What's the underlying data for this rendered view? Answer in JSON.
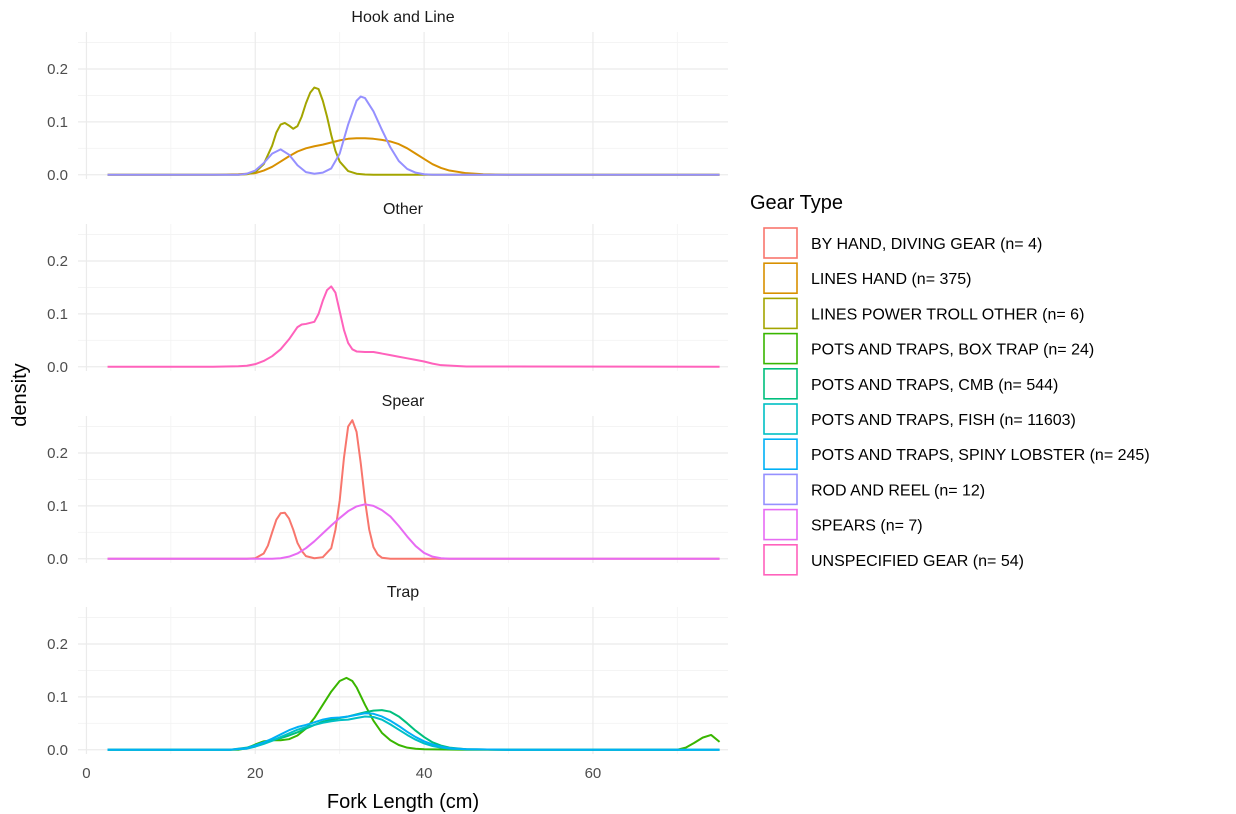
{
  "chart_data": {
    "type": "area",
    "xlabel": "Fork Length (cm)",
    "ylabel": "density",
    "xlim": [
      -1,
      76
    ],
    "ylim": [
      -0.008,
      0.27
    ],
    "x_ticks": [
      0,
      20,
      40,
      60
    ],
    "x_tick_labels": [
      "0",
      "20",
      "40",
      "60"
    ],
    "y_ticks": [
      0.0,
      0.1,
      0.2
    ],
    "y_tick_labels": [
      "0.0",
      "0.1",
      "0.2"
    ],
    "grid": true,
    "legend": {
      "title": "Gear Type",
      "position": "right",
      "entries": [
        {
          "label": "BY HAND, DIVING GEAR (n= 4)",
          "color": "#F8766D"
        },
        {
          "label": "LINES HAND (n= 375)",
          "color": "#D89000"
        },
        {
          "label": "LINES POWER TROLL OTHER (n= 6)",
          "color": "#A3A500"
        },
        {
          "label": "POTS AND TRAPS, BOX TRAP (n= 24)",
          "color": "#39B600"
        },
        {
          "label": "POTS AND TRAPS, CMB (n= 544)",
          "color": "#00BF7D"
        },
        {
          "label": "POTS AND TRAPS, FISH (n= 11603)",
          "color": "#00BFC4"
        },
        {
          "label": "POTS AND TRAPS, SPINY LOBSTER (n= 245)",
          "color": "#00B0F6"
        },
        {
          "label": "ROD AND REEL (n= 12)",
          "color": "#9590FF"
        },
        {
          "label": "SPEARS (n= 7)",
          "color": "#E76BF3"
        },
        {
          "label": "UNSPECIFIED GEAR (n= 54)",
          "color": "#FF62BC"
        }
      ]
    },
    "facets": [
      {
        "title": "Hook and Line",
        "series": [
          {
            "name": "LINES HAND (n= 375)",
            "color": "#D89000",
            "x": [
              2.5,
              15,
              18,
              20,
              21,
              22,
              23,
              24,
              25,
              26,
              27,
              28,
              29,
              30,
              31,
              32,
              33,
              34,
              35,
              36,
              37,
              38,
              39,
              40,
              41,
              42,
              43,
              45,
              47,
              50,
              55,
              75
            ],
            "y": [
              0,
              0,
              0.001,
              0.003,
              0.008,
              0.015,
              0.025,
              0.035,
              0.044,
              0.05,
              0.054,
              0.057,
              0.061,
              0.065,
              0.068,
              0.069,
              0.069,
              0.068,
              0.066,
              0.063,
              0.058,
              0.05,
              0.04,
              0.03,
              0.02,
              0.013,
              0.008,
              0.003,
              0.001,
              0,
              0,
              0
            ]
          },
          {
            "name": "LINES POWER TROLL OTHER (n= 6)",
            "color": "#A3A500",
            "x": [
              2.5,
              18,
              19,
              20,
              21,
              22,
              22.5,
              23,
              23.5,
              24,
              24.5,
              25,
              25.5,
              26,
              26.5,
              27,
              27.5,
              28,
              28.5,
              29,
              29.5,
              30,
              31,
              32,
              33,
              34,
              75
            ],
            "y": [
              0,
              0,
              0.001,
              0.005,
              0.02,
              0.055,
              0.08,
              0.095,
              0.098,
              0.093,
              0.087,
              0.092,
              0.11,
              0.135,
              0.155,
              0.165,
              0.162,
              0.14,
              0.11,
              0.075,
              0.045,
              0.025,
              0.007,
              0.002,
              0.0005,
              0,
              0
            ]
          },
          {
            "name": "ROD AND REEL (n= 12)",
            "color": "#9590FF",
            "x": [
              2.5,
              18,
              19,
              20,
              21,
              22,
              23,
              24,
              25,
              26,
              27,
              28,
              29,
              30,
              31,
              32,
              32.5,
              33,
              34,
              35,
              36,
              37,
              38,
              39,
              40,
              41,
              75
            ],
            "y": [
              0,
              0,
              0.002,
              0.008,
              0.022,
              0.04,
              0.048,
              0.038,
              0.018,
              0.005,
              0.002,
              0.004,
              0.012,
              0.04,
              0.095,
              0.14,
              0.148,
              0.145,
              0.12,
              0.085,
              0.052,
              0.026,
              0.011,
              0.004,
              0.001,
              0,
              0
            ]
          }
        ]
      },
      {
        "title": "Other",
        "series": [
          {
            "name": "UNSPECIFIED GEAR (n= 54)",
            "color": "#FF62BC",
            "x": [
              2.5,
              15,
              18,
              19,
              20,
              21,
              22,
              23,
              24,
              25,
              25.5,
              26,
              27,
              27.5,
              28,
              28.5,
              29,
              29.5,
              30,
              30.5,
              31,
              31.5,
              32,
              33,
              34,
              35,
              36,
              37,
              38,
              39,
              40,
              41,
              42,
              45,
              75
            ],
            "y": [
              0,
              0,
              0.001,
              0.002,
              0.005,
              0.011,
              0.02,
              0.033,
              0.052,
              0.075,
              0.08,
              0.081,
              0.085,
              0.1,
              0.125,
              0.145,
              0.152,
              0.14,
              0.105,
              0.07,
              0.045,
              0.033,
              0.029,
              0.028,
              0.028,
              0.025,
              0.022,
              0.019,
              0.016,
              0.013,
              0.01,
              0.006,
              0.003,
              0.0005,
              0
            ]
          }
        ]
      },
      {
        "title": "Spear",
        "series": [
          {
            "name": "BY HAND, DIVING GEAR (n= 4)",
            "color": "#F8766D",
            "x": [
              2.5,
              19,
              20,
              21,
              21.5,
              22,
              22.5,
              23,
              23.5,
              24,
              24.5,
              25,
              25.5,
              26,
              27,
              28,
              29,
              29.5,
              30,
              30.5,
              31,
              31.5,
              32,
              32.5,
              33,
              33.5,
              34,
              34.5,
              35,
              36,
              75
            ],
            "y": [
              0,
              0,
              0.001,
              0.01,
              0.025,
              0.05,
              0.074,
              0.086,
              0.087,
              0.076,
              0.055,
              0.03,
              0.015,
              0.005,
              0.001,
              0.003,
              0.02,
              0.055,
              0.11,
              0.19,
              0.25,
              0.262,
              0.24,
              0.18,
              0.11,
              0.055,
              0.022,
              0.008,
              0.002,
              0,
              0
            ]
          },
          {
            "name": "SPEARS (n= 7)",
            "color": "#E76BF3",
            "x": [
              2.5,
              22,
              23,
              24,
              25,
              26,
              27,
              28,
              29,
              30,
              31,
              32,
              33,
              34,
              35,
              36,
              37,
              38,
              39,
              40,
              41,
              42,
              43,
              75
            ],
            "y": [
              0,
              0,
              0.001,
              0.004,
              0.01,
              0.02,
              0.033,
              0.048,
              0.063,
              0.077,
              0.09,
              0.099,
              0.103,
              0.1,
              0.092,
              0.08,
              0.062,
              0.042,
              0.024,
              0.011,
              0.004,
              0.001,
              0,
              0
            ]
          }
        ]
      },
      {
        "title": "Trap",
        "series": [
          {
            "name": "POTS AND TRAPS, BOX TRAP (n= 24)",
            "color": "#39B600",
            "x": [
              2.5,
              18,
              19,
              20,
              21,
              22,
              23,
              24,
              25,
              26,
              27,
              28,
              29,
              30,
              30.8,
              31.5,
              32,
              33,
              34,
              35,
              36,
              37,
              38,
              39,
              40,
              45,
              70,
              71,
              72,
              73,
              74,
              75
            ],
            "y": [
              0,
              0,
              0.003,
              0.01,
              0.016,
              0.018,
              0.018,
              0.02,
              0.027,
              0.04,
              0.06,
              0.085,
              0.11,
              0.13,
              0.136,
              0.13,
              0.118,
              0.085,
              0.055,
              0.032,
              0.018,
              0.009,
              0.004,
              0.002,
              0.001,
              0,
              0,
              0.004,
              0.013,
              0.023,
              0.028,
              0.015
            ]
          },
          {
            "name": "POTS AND TRAPS, CMB (n= 544)",
            "color": "#00BF7D",
            "x": [
              2.5,
              17,
              19,
              20,
              21,
              22,
              23,
              24,
              25,
              26,
              27,
              28,
              29,
              30,
              31,
              32,
              33,
              34,
              35,
              36,
              37,
              38,
              39,
              40,
              41,
              42,
              43,
              45,
              50,
              75
            ],
            "y": [
              0,
              0,
              0.004,
              0.009,
              0.014,
              0.018,
              0.022,
              0.027,
              0.033,
              0.04,
              0.047,
              0.053,
              0.057,
              0.06,
              0.063,
              0.067,
              0.071,
              0.074,
              0.075,
              0.072,
              0.063,
              0.05,
              0.036,
              0.024,
              0.014,
              0.008,
              0.004,
              0.001,
              0,
              0
            ]
          },
          {
            "name": "POTS AND TRAPS, FISH (n= 11603)",
            "color": "#00BFC4",
            "x": [
              2.5,
              17,
              19,
              20,
              21,
              22,
              23,
              24,
              25,
              26,
              27,
              28,
              29,
              30,
              31,
              32,
              33,
              34,
              35,
              36,
              37,
              38,
              39,
              40,
              41,
              42,
              43,
              45,
              50,
              75
            ],
            "y": [
              0,
              0,
              0.002,
              0.006,
              0.011,
              0.017,
              0.024,
              0.031,
              0.038,
              0.043,
              0.047,
              0.051,
              0.054,
              0.056,
              0.057,
              0.06,
              0.063,
              0.062,
              0.057,
              0.048,
              0.038,
              0.028,
              0.019,
              0.012,
              0.007,
              0.004,
              0.002,
              0.001,
              0,
              0
            ]
          },
          {
            "name": "POTS AND TRAPS, SPINY LOBSTER (n= 245)",
            "color": "#00B0F6",
            "x": [
              2.5,
              17,
              19,
              20,
              21,
              22,
              23,
              24,
              25,
              26,
              27,
              28,
              29,
              30,
              31,
              32,
              33,
              34,
              35,
              36,
              37,
              38,
              39,
              40,
              41,
              42,
              43,
              45,
              50,
              75
            ],
            "y": [
              0,
              0,
              0.003,
              0.008,
              0.014,
              0.021,
              0.029,
              0.037,
              0.043,
              0.047,
              0.052,
              0.057,
              0.06,
              0.061,
              0.063,
              0.066,
              0.069,
              0.068,
              0.063,
              0.055,
              0.045,
              0.034,
              0.024,
              0.016,
              0.01,
              0.006,
              0.003,
              0.001,
              0,
              0
            ]
          }
        ]
      }
    ]
  }
}
